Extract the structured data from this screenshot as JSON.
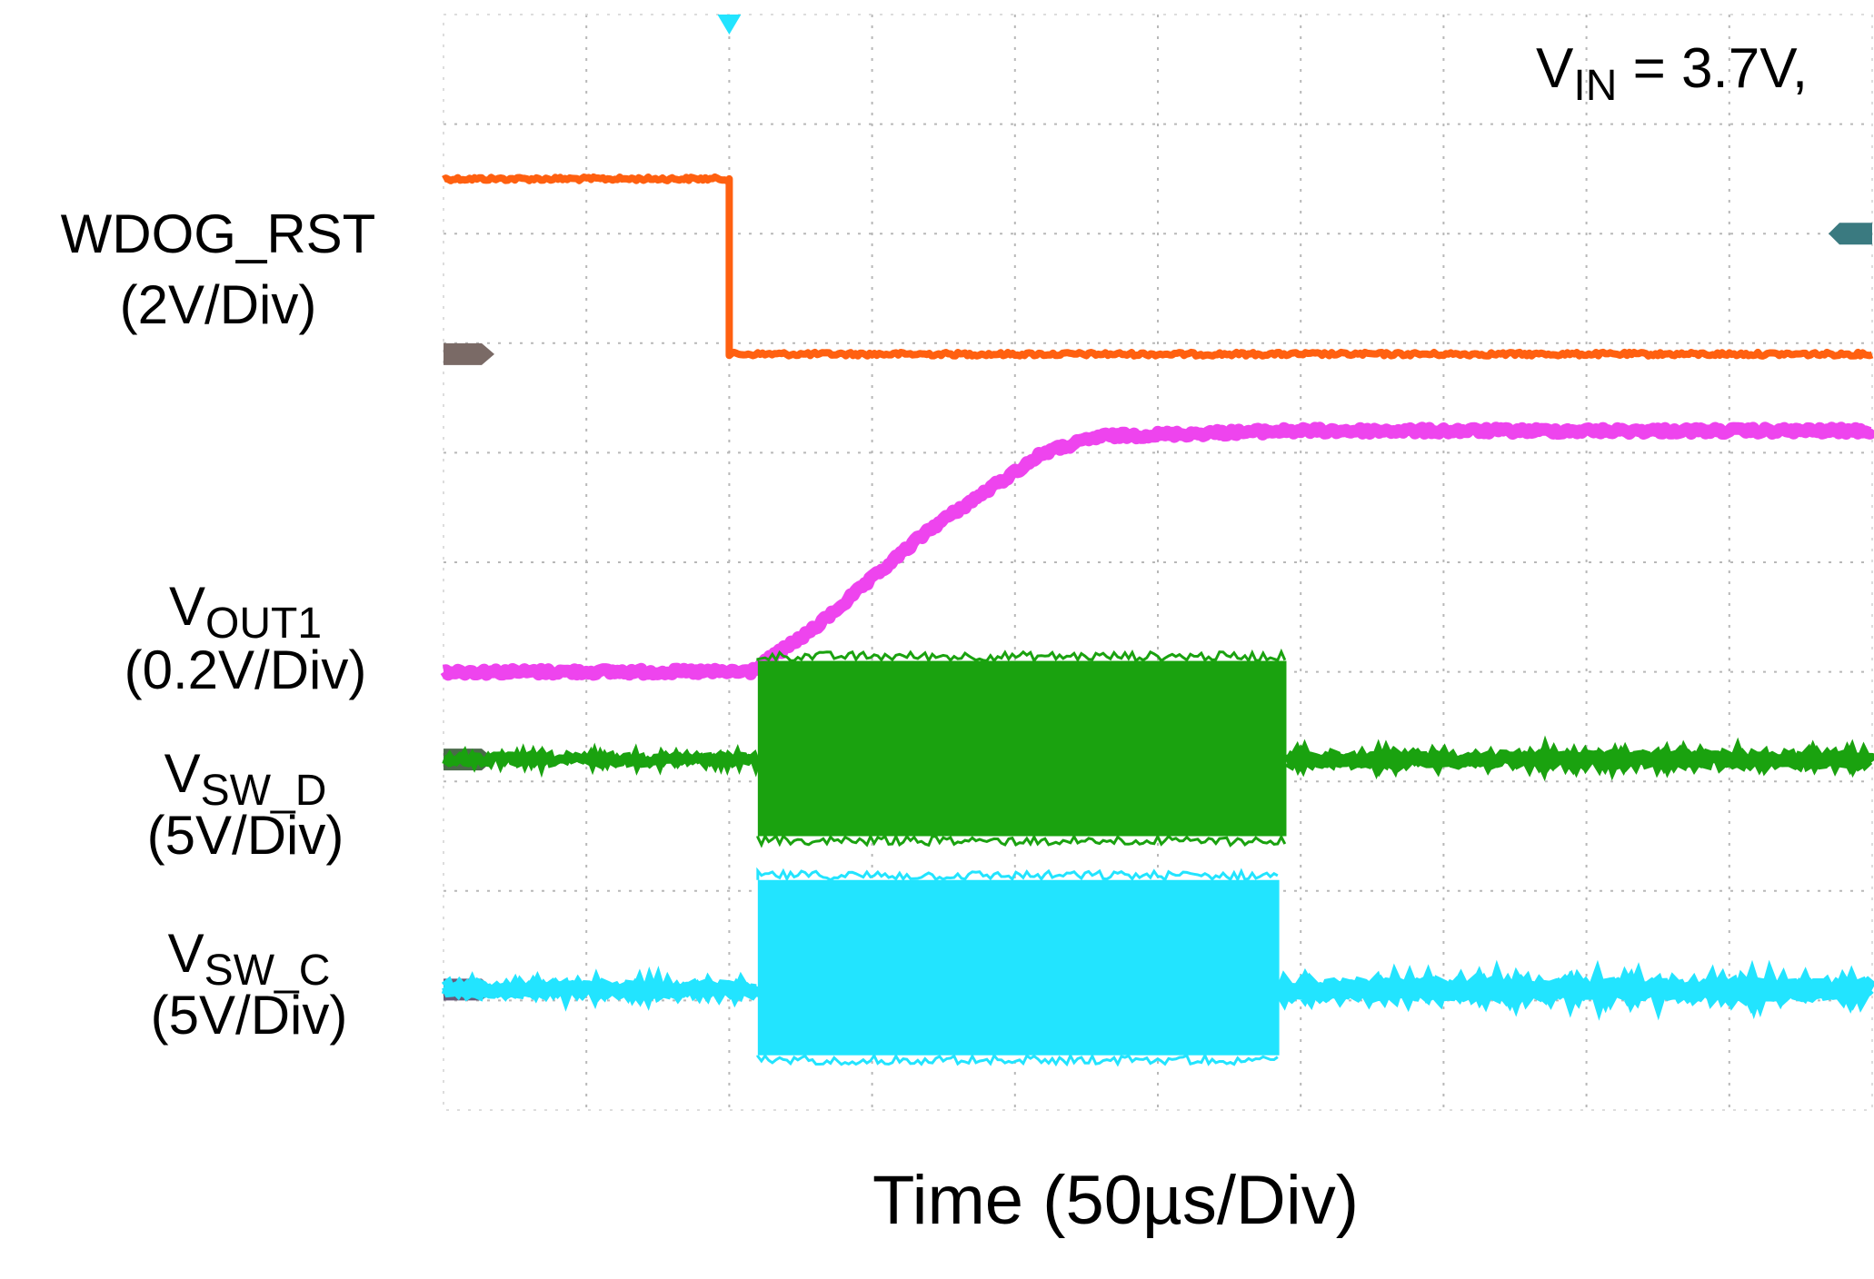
{
  "annotation": {
    "vin_symbol": "V",
    "vin_sub": "IN",
    "vin_rest": " = 3.7V,"
  },
  "x_axis_label": "Time (50µs/Div)",
  "labels": {
    "wdog": {
      "name": "WDOG_RST",
      "scale": "(2V/Div)"
    },
    "vout1": {
      "symbol": "V",
      "sub": "OUT1",
      "scale": "(0.2V/Div)"
    },
    "vswd": {
      "symbol": "V",
      "sub": "SW_D",
      "scale": "(5V/Div)"
    },
    "vswc": {
      "symbol": "V",
      "sub": "SW_C",
      "scale": "(5V/Div)"
    }
  },
  "chart_data": {
    "type": "line",
    "title": "",
    "xlabel": "Time (50µs/Div)",
    "ylabel": "",
    "x_unit": "div",
    "x_range": [
      0,
      10
    ],
    "y_range": [
      0,
      10
    ],
    "grid": true,
    "grid_divisions": {
      "x": 10,
      "y": 10
    },
    "trigger_position_div": 2.0,
    "colors": {
      "wdog": "#ff6010",
      "vout1": "#ee44ee",
      "vswd": "#1aa20f",
      "vswc": "#22e4ff",
      "grid": "#b8b8b8"
    },
    "series": [
      {
        "name": "WDOG_RST",
        "scale": "2V/Div",
        "points": [
          [
            0,
            8.5
          ],
          [
            2.0,
            8.5
          ],
          [
            2.0,
            6.9
          ],
          [
            10,
            6.9
          ]
        ]
      },
      {
        "name": "VOUT1",
        "scale": "0.2V/Div",
        "points": [
          [
            0,
            4.0
          ],
          [
            2.15,
            4.0
          ],
          [
            2.6,
            4.4
          ],
          [
            3.4,
            5.3
          ],
          [
            4.2,
            6.0
          ],
          [
            4.6,
            6.15
          ],
          [
            5.9,
            6.2
          ],
          [
            10,
            6.2
          ]
        ]
      },
      {
        "name": "VSW_D",
        "scale": "5V/Div",
        "baseline": 3.2,
        "burst": {
          "start": 2.2,
          "end": 5.9,
          "high": 4.1,
          "low": 2.5
        }
      },
      {
        "name": "VSW_C",
        "scale": "5V/Div",
        "baseline": 1.1,
        "burst": {
          "start": 2.2,
          "end": 5.85,
          "high": 2.1,
          "low": 0.5
        }
      }
    ]
  }
}
